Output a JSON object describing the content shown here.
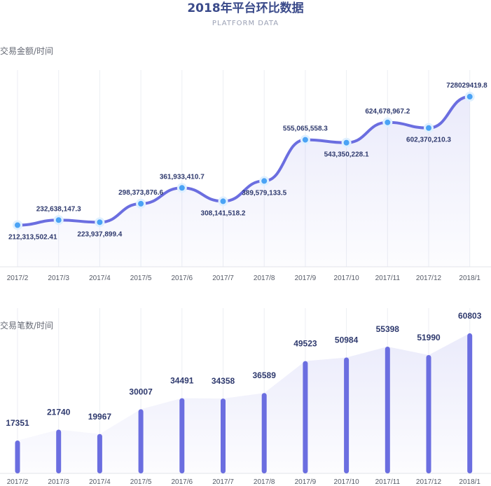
{
  "header": {
    "title": "2018年平台环比数据",
    "subtitle": "PLATFORM DATA"
  },
  "colors": {
    "accent": "#6b6ee0",
    "marker": "#4aa3f5",
    "title": "#3a4a8a"
  },
  "chart_data": [
    {
      "type": "line",
      "ylabel": "交易金额/时间",
      "categories": [
        "2017/2",
        "2017/3",
        "2017/4",
        "2017/5",
        "2017/6",
        "2017/7",
        "2017/8",
        "2017/9",
        "2017/10",
        "2017/11",
        "2017/12",
        "2018/1"
      ],
      "values": [
        212313502.41,
        232638147.3,
        223937899.4,
        298373876.6,
        361933410.7,
        308141518.2,
        389579133.5,
        555065558.3,
        543350228.1,
        624678967.2,
        602370210.3,
        728029419.8
      ],
      "labels": [
        "212,313,502.41",
        "232,638,147.3",
        "223,937,899.4",
        "298,373,876.6",
        "361,933,410.7",
        "308,141,518.2",
        "389,579,133.5",
        "555,065,558.3",
        "543,350,228.1",
        "624,678,967.2",
        "602,370,210.3",
        "728029419.8"
      ],
      "ylim": [
        45000000,
        835000000
      ],
      "grid": "vertical",
      "area_fill": true
    },
    {
      "type": "bar",
      "ylabel": "交易笔数/时间",
      "categories": [
        "2017/2",
        "2017/3",
        "2017/4",
        "2017/5",
        "2017/6",
        "2017/7",
        "2017/8",
        "2017/9",
        "2017/10",
        "2017/11",
        "2017/12",
        "2018/1"
      ],
      "values": [
        17351,
        21740,
        19967,
        30007,
        34491,
        34358,
        36589,
        49523,
        50984,
        55398,
        51990,
        60803
      ],
      "ylim": [
        4000,
        71000
      ],
      "grid": "vertical",
      "area_fill": true
    }
  ]
}
